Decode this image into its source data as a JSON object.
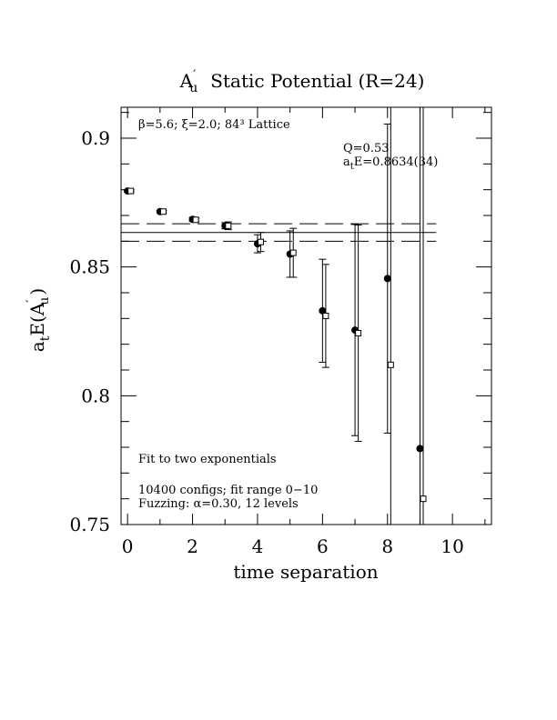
{
  "chart_data": {
    "type": "scatter",
    "title_main": "A",
    "title_sub": "u",
    "title_prime": "′",
    "title_rest": "Static Potential (R=24)",
    "xlabel": "time separation",
    "ylabel_main": "a",
    "ylabel_sub1": "t",
    "ylabel_mid": "E(A",
    "ylabel_prime": "′",
    "ylabel_sub2": "u",
    "ylabel_end": ")",
    "xlim": [
      -0.2,
      11.2
    ],
    "ylim": [
      0.75,
      0.912
    ],
    "xticks": [
      0,
      2,
      4,
      6,
      8,
      10
    ],
    "xtick_labels": [
      "0",
      "2",
      "4",
      "6",
      "8",
      "10"
    ],
    "yticks": [
      0.75,
      0.8,
      0.85,
      0.9
    ],
    "ytick_labels": [
      "0.75",
      "0.8",
      "0.85",
      "0.9"
    ],
    "annotations": {
      "lattice": "β=5.6; ξ=2.0; 84³ Lattice",
      "q": "Q=0.53",
      "energy_prefix": "a",
      "energy_sub": "t",
      "energy_rest": "E=0.8634(34)",
      "fit": "Fit to two exponentials",
      "configs": "10400 configs; fit range 0−10",
      "fuzzing": "Fuzzing: α=0.30, 12 levels"
    },
    "fit": {
      "value": 0.8634,
      "error": 0.0034,
      "x_range": [
        -0.2,
        9.5
      ]
    },
    "series": [
      {
        "marker": "filled-circle",
        "x": [
          0,
          1,
          2,
          3,
          4,
          5,
          6,
          7,
          8,
          9
        ],
        "y": [
          0.8795,
          0.8715,
          0.8685,
          0.866,
          0.859,
          0.855,
          0.833,
          0.8255,
          0.8455,
          0.7795
        ],
        "err": [
          0.0004,
          0.0005,
          0.0007,
          0.0012,
          0.0035,
          0.009,
          0.02,
          0.041,
          0.06,
          0.2
        ]
      },
      {
        "marker": "open-square",
        "x": [
          0.1,
          1.1,
          2.1,
          3.1,
          4.1,
          5.1,
          6.1,
          7.1,
          8.1,
          9.1
        ],
        "y": [
          0.8795,
          0.8715,
          0.8683,
          0.866,
          0.8597,
          0.8555,
          0.831,
          0.8243,
          0.812,
          0.76
        ],
        "err": [
          0.0004,
          0.0005,
          0.0007,
          0.0015,
          0.0037,
          0.0095,
          0.02,
          0.042,
          0.1,
          0.3
        ]
      }
    ]
  }
}
